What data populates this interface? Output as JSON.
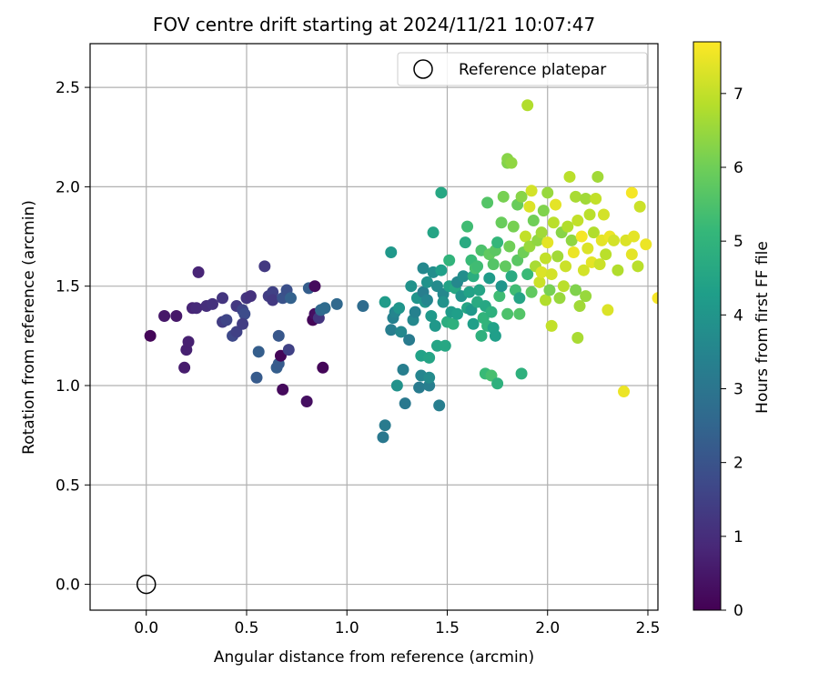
{
  "chart_data": {
    "type": "scatter",
    "title": "FOV centre drift starting at 2024/11/21 10:07:47",
    "xlabel": "Angular distance from reference (arcmin)",
    "ylabel": "Rotation from reference (arcmin)",
    "xlim": [
      -0.28,
      2.55
    ],
    "ylim": [
      -0.13,
      2.72
    ],
    "xticks": [
      "0.0",
      "0.5",
      "1.0",
      "1.5",
      "2.0",
      "2.5"
    ],
    "xtick_values": [
      0,
      0.5,
      1.0,
      1.5,
      2.0,
      2.5
    ],
    "yticks": [
      "0.0",
      "0.5",
      "1.0",
      "1.5",
      "2.0",
      "2.5"
    ],
    "ytick_values": [
      0,
      0.5,
      1.0,
      1.5,
      2.0,
      2.5
    ],
    "grid": true,
    "legend": {
      "position": "top-right",
      "label": "Reference platepar",
      "marker": "open-circle"
    },
    "reference_point": {
      "x": 0.0,
      "y": 0.0
    },
    "colorbar": {
      "label": "Hours from first FF file",
      "colormap": "viridis",
      "range": [
        0,
        7.7
      ],
      "ticks": [
        "0",
        "1",
        "2",
        "3",
        "4",
        "5",
        "6",
        "7"
      ],
      "tick_values": [
        0,
        1,
        2,
        3,
        4,
        5,
        6,
        7
      ]
    },
    "series": [
      {
        "c_label": "Hours from first FF file",
        "points": [
          [
            0.02,
            1.25,
            0.1
          ],
          [
            0.09,
            1.35,
            0.5
          ],
          [
            0.15,
            1.35,
            0.5
          ],
          [
            0.19,
            1.09,
            0.6
          ],
          [
            0.2,
            1.18,
            0.7
          ],
          [
            0.21,
            1.22,
            0.7
          ],
          [
            0.23,
            1.39,
            0.8
          ],
          [
            0.25,
            1.39,
            0.9
          ],
          [
            0.26,
            1.57,
            0.8
          ],
          [
            0.3,
            1.4,
            1.0
          ],
          [
            0.33,
            1.41,
            1.1
          ],
          [
            0.38,
            1.44,
            1.2
          ],
          [
            0.38,
            1.32,
            1.4
          ],
          [
            0.4,
            1.33,
            1.6
          ],
          [
            0.43,
            1.25,
            1.7
          ],
          [
            0.45,
            1.27,
            1.5
          ],
          [
            0.45,
            1.4,
            1.3
          ],
          [
            0.48,
            1.38,
            1.6
          ],
          [
            0.49,
            1.36,
            1.8
          ],
          [
            0.48,
            1.31,
            1.4
          ],
          [
            0.5,
            1.44,
            1.2
          ],
          [
            0.52,
            1.45,
            1.1
          ],
          [
            0.55,
            1.04,
            2.2
          ],
          [
            0.56,
            1.17,
            2.3
          ],
          [
            0.59,
            1.6,
            1.3
          ],
          [
            0.61,
            1.45,
            1.4
          ],
          [
            0.63,
            1.47,
            1.5
          ],
          [
            0.63,
            1.43,
            1.3
          ],
          [
            0.65,
            1.09,
            2.3
          ],
          [
            0.66,
            1.11,
            2.2
          ],
          [
            0.66,
            1.25,
            2.1
          ],
          [
            0.67,
            1.15,
            0.1
          ],
          [
            0.68,
            0.98,
            0.2
          ],
          [
            0.68,
            1.44,
            2.0
          ],
          [
            0.7,
            1.48,
            1.9
          ],
          [
            0.71,
            1.18,
            1.5
          ],
          [
            0.72,
            1.44,
            2.4
          ],
          [
            0.8,
            0.92,
            0.3
          ],
          [
            0.81,
            1.49,
            2.3
          ],
          [
            0.83,
            1.33,
            0.1
          ],
          [
            0.84,
            1.5,
            0.2
          ],
          [
            0.84,
            1.36,
            0.3
          ],
          [
            0.86,
            1.34,
            1.2
          ],
          [
            0.87,
            1.38,
            2.6
          ],
          [
            0.88,
            1.09,
            0.1
          ],
          [
            0.89,
            1.39,
            2.7
          ],
          [
            0.95,
            1.41,
            2.6
          ],
          [
            1.08,
            1.4,
            2.7
          ],
          [
            1.18,
            0.74,
            3.1
          ],
          [
            1.19,
            0.8,
            3.2
          ],
          [
            1.19,
            1.42,
            4.2
          ],
          [
            1.22,
            1.28,
            3.3
          ],
          [
            1.22,
            1.67,
            4.1
          ],
          [
            1.23,
            1.34,
            3.4
          ],
          [
            1.24,
            1.37,
            3.5
          ],
          [
            1.25,
            1.0,
            3.9
          ],
          [
            1.26,
            1.39,
            4.0
          ],
          [
            1.27,
            1.27,
            3.6
          ],
          [
            1.28,
            1.08,
            3.3
          ],
          [
            1.29,
            0.91,
            3.1
          ],
          [
            1.31,
            1.23,
            3.2
          ],
          [
            1.32,
            1.5,
            3.9
          ],
          [
            1.33,
            1.33,
            3.6
          ],
          [
            1.34,
            1.37,
            3.4
          ],
          [
            1.35,
            1.44,
            4.0
          ],
          [
            1.36,
            0.99,
            3.2
          ],
          [
            1.37,
            1.05,
            3.5
          ],
          [
            1.37,
            1.15,
            4.4
          ],
          [
            1.38,
            1.47,
            3.3
          ],
          [
            1.38,
            1.59,
            3.6
          ],
          [
            1.39,
            1.42,
            4.0
          ],
          [
            1.4,
            1.52,
            3.9
          ],
          [
            1.4,
            1.43,
            3.5
          ],
          [
            1.41,
            1.0,
            3.3
          ],
          [
            1.41,
            1.04,
            3.7
          ],
          [
            1.41,
            1.14,
            4.5
          ],
          [
            1.42,
            1.35,
            4.1
          ],
          [
            1.43,
            1.57,
            3.8
          ],
          [
            1.43,
            1.77,
            4.5
          ],
          [
            1.44,
            1.3,
            4.1
          ],
          [
            1.45,
            1.5,
            3.7
          ],
          [
            1.45,
            1.2,
            4.5
          ],
          [
            1.46,
            0.9,
            3.3
          ],
          [
            1.47,
            1.58,
            4.3
          ],
          [
            1.47,
            1.97,
            4.6
          ],
          [
            1.48,
            1.46,
            3.6
          ],
          [
            1.48,
            1.42,
            3.9
          ],
          [
            1.49,
            1.2,
            4.6
          ],
          [
            1.5,
            1.32,
            4.8
          ],
          [
            1.51,
            1.63,
            5.0
          ],
          [
            1.51,
            1.5,
            4.4
          ],
          [
            1.52,
            1.37,
            4.2
          ],
          [
            1.53,
            1.31,
            4.9
          ],
          [
            1.54,
            1.49,
            4.6
          ],
          [
            1.55,
            1.36,
            4.3
          ],
          [
            1.55,
            1.52,
            3.6
          ],
          [
            1.57,
            1.45,
            4.0
          ],
          [
            1.58,
            1.55,
            3.8
          ],
          [
            1.59,
            1.72,
            4.7
          ],
          [
            1.6,
            1.8,
            5.3
          ],
          [
            1.6,
            1.39,
            4.5
          ],
          [
            1.61,
            1.47,
            4.4
          ],
          [
            1.62,
            1.38,
            4.1
          ],
          [
            1.62,
            1.63,
            5.2
          ],
          [
            1.63,
            1.31,
            4.3
          ],
          [
            1.63,
            1.55,
            4.8
          ],
          [
            1.64,
            1.59,
            5.4
          ],
          [
            1.65,
            1.6,
            5.3
          ],
          [
            1.65,
            1.42,
            4.7
          ],
          [
            1.66,
            1.48,
            4.5
          ],
          [
            1.67,
            1.68,
            5.5
          ],
          [
            1.67,
            1.25,
            4.9
          ],
          [
            1.68,
            1.34,
            5.0
          ],
          [
            1.69,
            1.4,
            4.6
          ],
          [
            1.69,
            1.06,
            5.2
          ],
          [
            1.7,
            1.92,
            5.6
          ],
          [
            1.7,
            1.3,
            5.0
          ],
          [
            1.71,
            1.66,
            5.8
          ],
          [
            1.71,
            1.54,
            4.2
          ],
          [
            1.72,
            1.37,
            4.9
          ],
          [
            1.72,
            1.05,
            5.4
          ],
          [
            1.73,
            1.29,
            4.4
          ],
          [
            1.73,
            1.61,
            5.6
          ],
          [
            1.74,
            1.68,
            5.7
          ],
          [
            1.74,
            1.25,
            4.3
          ],
          [
            1.75,
            1.01,
            4.9
          ],
          [
            1.75,
            1.72,
            5.1
          ],
          [
            1.76,
            1.45,
            5.3
          ],
          [
            1.77,
            1.5,
            4.0
          ],
          [
            1.77,
            1.82,
            5.9
          ],
          [
            1.78,
            1.95,
            6.1
          ],
          [
            1.79,
            1.6,
            5.8
          ],
          [
            1.8,
            2.12,
            6.2
          ],
          [
            1.8,
            2.14,
            6.3
          ],
          [
            1.8,
            1.36,
            5.5
          ],
          [
            1.81,
            1.7,
            6.0
          ],
          [
            1.82,
            1.55,
            4.7
          ],
          [
            1.82,
            2.12,
            6.4
          ],
          [
            1.83,
            1.8,
            6.1
          ],
          [
            1.84,
            1.48,
            5.3
          ],
          [
            1.85,
            1.63,
            5.7
          ],
          [
            1.85,
            1.91,
            5.9
          ],
          [
            1.86,
            1.44,
            4.5
          ],
          [
            1.86,
            1.36,
            5.6
          ],
          [
            1.87,
            1.95,
            6.3
          ],
          [
            1.87,
            1.06,
            4.9
          ],
          [
            1.88,
            1.67,
            6.0
          ],
          [
            1.89,
            1.75,
            7.0
          ],
          [
            1.9,
            2.41,
            6.8
          ],
          [
            1.9,
            1.56,
            5.2
          ],
          [
            1.91,
            1.7,
            6.5
          ],
          [
            1.91,
            1.9,
            7.3
          ],
          [
            1.92,
            1.98,
            7.2
          ],
          [
            1.92,
            1.47,
            5.8
          ],
          [
            1.93,
            1.83,
            6.0
          ],
          [
            1.94,
            1.6,
            6.7
          ],
          [
            1.95,
            1.73,
            6.4
          ],
          [
            1.96,
            1.52,
            7.1
          ],
          [
            1.97,
            1.57,
            7.3
          ],
          [
            1.97,
            1.77,
            6.6
          ],
          [
            1.98,
            1.88,
            6.2
          ],
          [
            1.99,
            1.43,
            6.8
          ],
          [
            1.99,
            1.64,
            7.0
          ],
          [
            2.0,
            1.72,
            7.4
          ],
          [
            2.0,
            1.97,
            6.5
          ],
          [
            2.01,
            1.48,
            6.1
          ],
          [
            2.02,
            1.56,
            7.2
          ],
          [
            2.02,
            1.3,
            7.0
          ],
          [
            2.03,
            1.82,
            6.9
          ],
          [
            2.04,
            1.91,
            7.4
          ],
          [
            2.05,
            1.65,
            6.6
          ],
          [
            2.06,
            1.44,
            6.5
          ],
          [
            2.07,
            1.77,
            6.3
          ],
          [
            2.08,
            1.5,
            6.9
          ],
          [
            2.09,
            1.6,
            7.1
          ],
          [
            2.1,
            1.8,
            6.8
          ],
          [
            2.11,
            2.05,
            6.9
          ],
          [
            2.12,
            1.73,
            6.4
          ],
          [
            2.13,
            1.67,
            7.5
          ],
          [
            2.14,
            1.95,
            6.7
          ],
          [
            2.14,
            1.48,
            6.2
          ],
          [
            2.15,
            1.83,
            7.0
          ],
          [
            2.15,
            1.24,
            6.7
          ],
          [
            2.16,
            1.4,
            6.6
          ],
          [
            2.17,
            1.75,
            7.6
          ],
          [
            2.18,
            1.58,
            7.2
          ],
          [
            2.19,
            1.94,
            6.6
          ],
          [
            2.19,
            1.45,
            6.5
          ],
          [
            2.2,
            1.69,
            7.3
          ],
          [
            2.21,
            1.86,
            6.9
          ],
          [
            2.22,
            1.62,
            7.4
          ],
          [
            2.23,
            1.77,
            6.8
          ],
          [
            2.24,
            1.94,
            7.0
          ],
          [
            2.25,
            2.05,
            6.6
          ],
          [
            2.26,
            1.61,
            7.1
          ],
          [
            2.27,
            1.73,
            7.4
          ],
          [
            2.28,
            1.86,
            7.2
          ],
          [
            2.29,
            1.66,
            6.9
          ],
          [
            2.3,
            1.38,
            7.3
          ],
          [
            2.31,
            1.75,
            7.5
          ],
          [
            2.33,
            1.73,
            7.2
          ],
          [
            2.35,
            1.58,
            6.8
          ],
          [
            2.38,
            0.97,
            7.5
          ],
          [
            2.39,
            1.73,
            7.3
          ],
          [
            2.42,
            1.66,
            7.4
          ],
          [
            2.42,
            1.97,
            7.6
          ],
          [
            2.43,
            1.75,
            7.4
          ],
          [
            2.45,
            1.6,
            6.9
          ],
          [
            2.46,
            1.9,
            7.1
          ],
          [
            2.49,
            1.71,
            7.5
          ],
          [
            2.55,
            1.44,
            7.6
          ]
        ]
      }
    ]
  }
}
